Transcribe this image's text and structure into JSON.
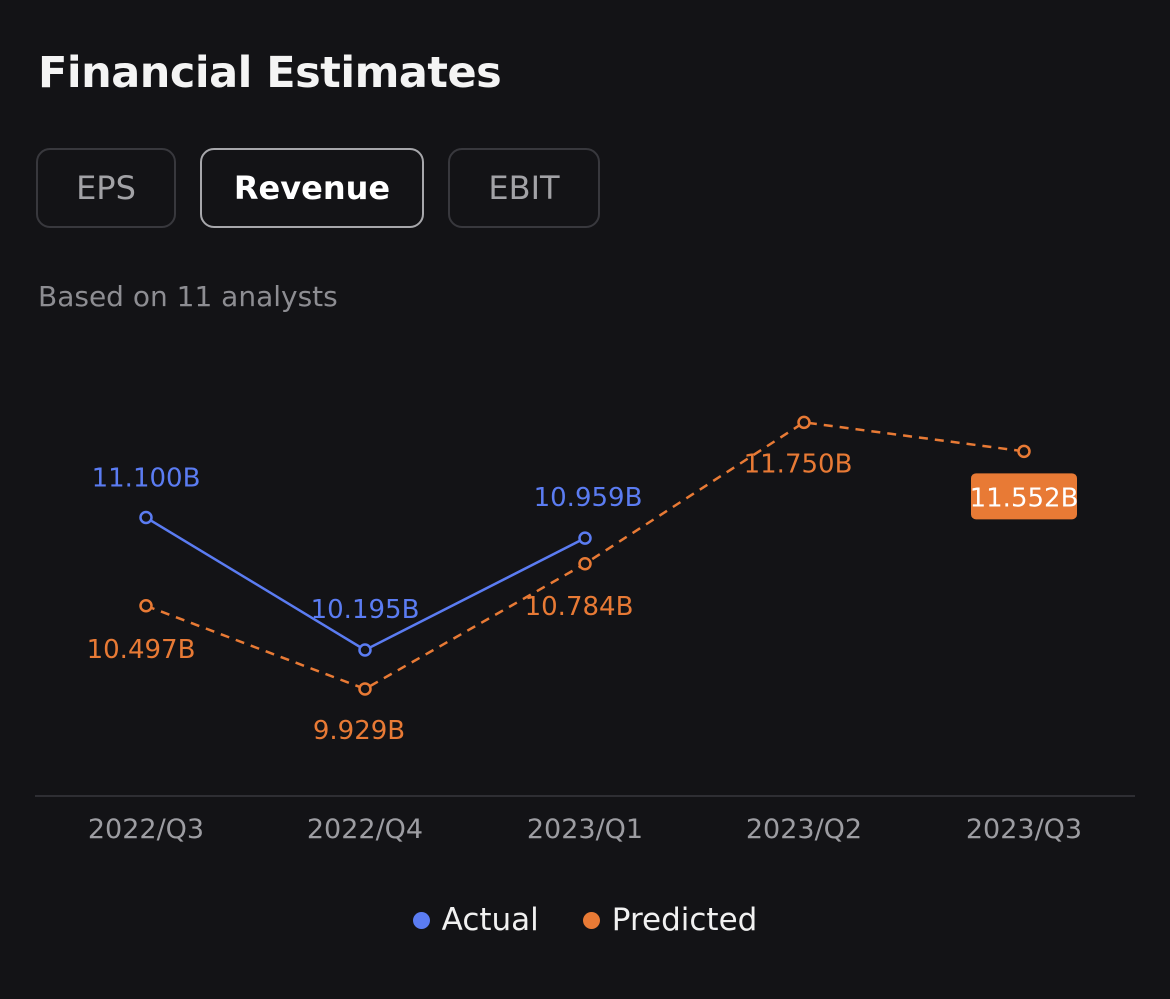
{
  "title": "Financial Estimates",
  "tabs": [
    {
      "label": "EPS",
      "active": false
    },
    {
      "label": "Revenue",
      "active": true
    },
    {
      "label": "EBIT",
      "active": false
    }
  ],
  "subtitle": "Based on 11 analysts",
  "colors": {
    "actual": "#5b7cf2",
    "predicted": "#e87a35",
    "background": "#131316"
  },
  "chart_data": {
    "type": "line",
    "categories": [
      "2022/Q3",
      "2022/Q4",
      "2023/Q1",
      "2023/Q2",
      "2023/Q3"
    ],
    "unit": "B",
    "series": [
      {
        "name": "Actual",
        "values": [
          11.1,
          10.195,
          10.959,
          null,
          null
        ],
        "labels": [
          "11.100B",
          "10.195B",
          "10.959B",
          null,
          null
        ],
        "style": "solid"
      },
      {
        "name": "Predicted",
        "values": [
          10.497,
          9.929,
          10.784,
          11.75,
          11.552
        ],
        "labels": [
          "10.497B",
          "9.929B",
          "10.784B",
          "11.750B",
          "11.552B"
        ],
        "style": "dashed",
        "highlighted_index": 4
      }
    ],
    "grid": false,
    "legend": "bottom-center"
  }
}
